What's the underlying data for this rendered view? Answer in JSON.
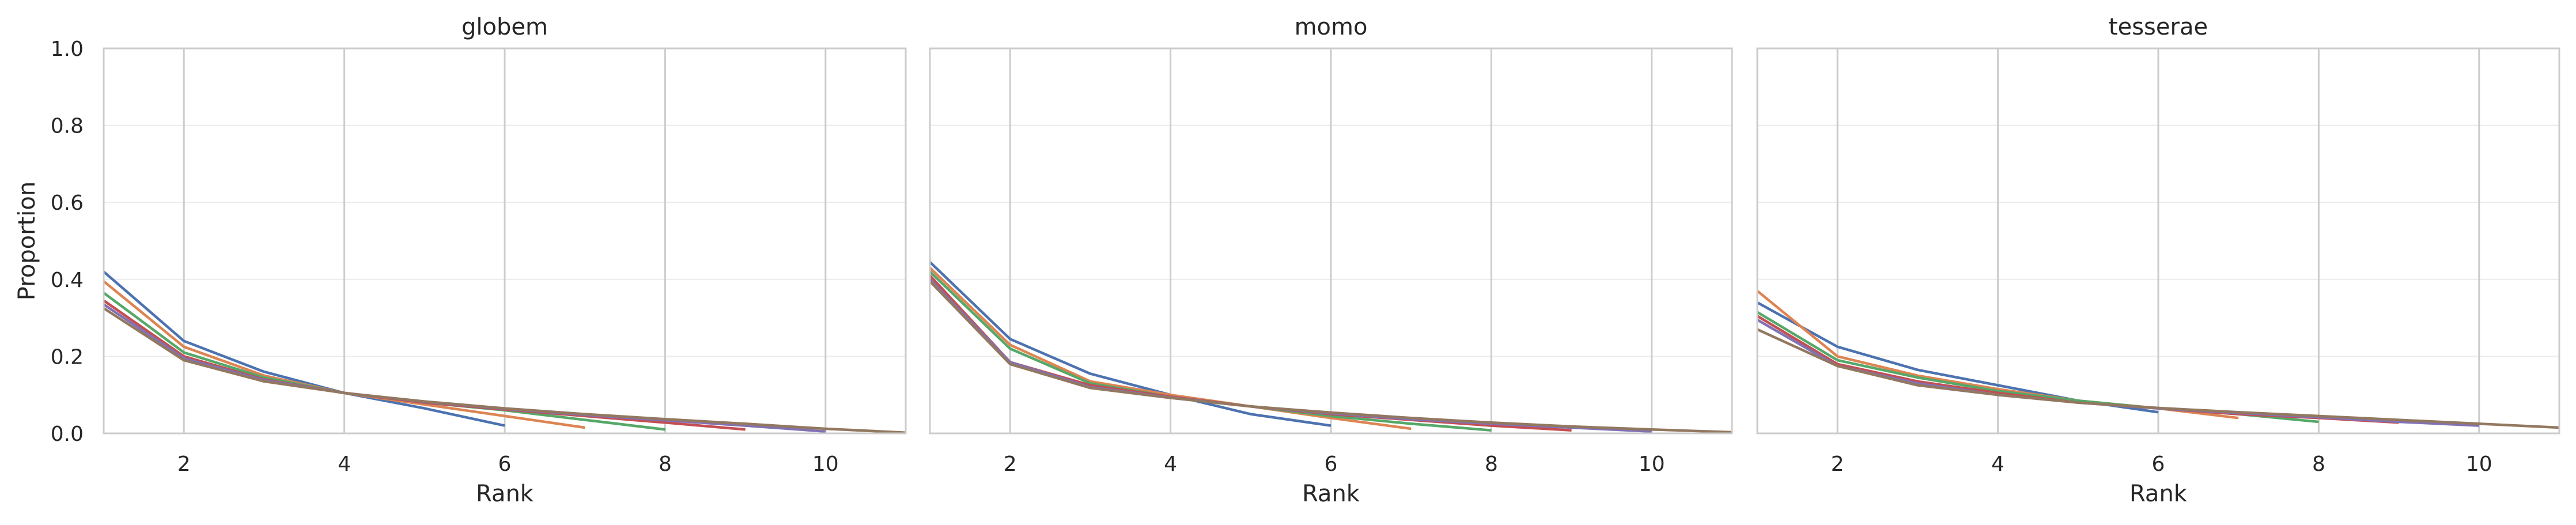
{
  "chart_data": [
    {
      "type": "line",
      "title": "globem",
      "xlabel": "Rank",
      "ylabel": "Proportion",
      "xlim": [
        1,
        11
      ],
      "ylim": [
        0,
        1
      ],
      "xticks": [
        "2",
        "4",
        "6",
        "8",
        "10"
      ],
      "yticks": [
        "0.0",
        "0.2",
        "0.4",
        "0.6",
        "0.8",
        "1.0"
      ],
      "grid": true,
      "series": [
        {
          "color": "#4c72b0",
          "x": [
            1,
            2,
            3,
            4,
            5,
            6
          ],
          "y": [
            0.42,
            0.24,
            0.16,
            0.105,
            0.065,
            0.02
          ]
        },
        {
          "color": "#dd8452",
          "x": [
            1,
            2,
            3,
            4,
            5,
            6,
            7
          ],
          "y": [
            0.395,
            0.225,
            0.15,
            0.105,
            0.075,
            0.045,
            0.015
          ]
        },
        {
          "color": "#55a868",
          "x": [
            1,
            2,
            3,
            4,
            5,
            6,
            7,
            8
          ],
          "y": [
            0.365,
            0.21,
            0.145,
            0.105,
            0.08,
            0.06,
            0.035,
            0.01
          ]
        },
        {
          "color": "#c44e52",
          "x": [
            1,
            2,
            3,
            4,
            5,
            6,
            7,
            8,
            9
          ],
          "y": [
            0.345,
            0.2,
            0.14,
            0.105,
            0.08,
            0.062,
            0.045,
            0.028,
            0.01
          ]
        },
        {
          "color": "#8172b3",
          "x": [
            1,
            2,
            3,
            4,
            5,
            6,
            7,
            8,
            9,
            10
          ],
          "y": [
            0.335,
            0.195,
            0.138,
            0.105,
            0.082,
            0.064,
            0.048,
            0.034,
            0.02,
            0.005
          ]
        },
        {
          "color": "#937860",
          "x": [
            1,
            2,
            3,
            4,
            5,
            6,
            7,
            8,
            9,
            10,
            11
          ],
          "y": [
            0.325,
            0.19,
            0.135,
            0.105,
            0.083,
            0.065,
            0.05,
            0.037,
            0.025,
            0.012,
            0.002
          ]
        }
      ]
    },
    {
      "type": "line",
      "title": "momo",
      "xlabel": "Rank",
      "ylabel": "",
      "xlim": [
        1,
        11
      ],
      "ylim": [
        0,
        1
      ],
      "xticks": [
        "2",
        "4",
        "6",
        "8",
        "10"
      ],
      "yticks": [],
      "grid": true,
      "series": [
        {
          "color": "#4c72b0",
          "x": [
            1,
            2,
            3,
            4,
            5,
            6
          ],
          "y": [
            0.445,
            0.245,
            0.155,
            0.1,
            0.05,
            0.02
          ]
        },
        {
          "color": "#dd8452",
          "x": [
            1,
            2,
            3,
            4,
            5,
            6,
            7
          ],
          "y": [
            0.43,
            0.23,
            0.135,
            0.1,
            0.07,
            0.04,
            0.012
          ]
        },
        {
          "color": "#55a868",
          "x": [
            1,
            2,
            3,
            4,
            5,
            6,
            7,
            8
          ],
          "y": [
            0.42,
            0.22,
            0.13,
            0.095,
            0.07,
            0.045,
            0.025,
            0.008
          ]
        },
        {
          "color": "#c44e52",
          "x": [
            1,
            2,
            3,
            4,
            5,
            6,
            7,
            8,
            9
          ],
          "y": [
            0.41,
            0.185,
            0.125,
            0.095,
            0.07,
            0.05,
            0.035,
            0.02,
            0.008
          ]
        },
        {
          "color": "#8172b3",
          "x": [
            1,
            2,
            3,
            4,
            5,
            6,
            7,
            8,
            9,
            10
          ],
          "y": [
            0.4,
            0.185,
            0.12,
            0.093,
            0.07,
            0.052,
            0.037,
            0.025,
            0.015,
            0.005
          ]
        },
        {
          "color": "#937860",
          "x": [
            1,
            2,
            3,
            4,
            5,
            6,
            7,
            8,
            9,
            10,
            11
          ],
          "y": [
            0.395,
            0.18,
            0.118,
            0.092,
            0.07,
            0.054,
            0.04,
            0.028,
            0.018,
            0.01,
            0.003
          ]
        }
      ]
    },
    {
      "type": "line",
      "title": "tesserae",
      "xlabel": "Rank",
      "ylabel": "",
      "xlim": [
        1,
        11
      ],
      "ylim": [
        0,
        1
      ],
      "xticks": [
        "2",
        "4",
        "6",
        "8",
        "10"
      ],
      "yticks": [],
      "grid": true,
      "series": [
        {
          "color": "#4c72b0",
          "x": [
            1,
            2,
            3,
            4,
            5,
            6
          ],
          "y": [
            0.34,
            0.225,
            0.165,
            0.125,
            0.085,
            0.055
          ]
        },
        {
          "color": "#dd8452",
          "x": [
            1,
            2,
            3,
            4,
            5,
            6,
            7
          ],
          "y": [
            0.37,
            0.2,
            0.15,
            0.115,
            0.085,
            0.065,
            0.04
          ]
        },
        {
          "color": "#55a868",
          "x": [
            1,
            2,
            3,
            4,
            5,
            6,
            7,
            8
          ],
          "y": [
            0.315,
            0.19,
            0.145,
            0.11,
            0.085,
            0.065,
            0.05,
            0.03
          ]
        },
        {
          "color": "#c44e52",
          "x": [
            1,
            2,
            3,
            4,
            5,
            6,
            7,
            8,
            9
          ],
          "y": [
            0.305,
            0.18,
            0.135,
            0.105,
            0.08,
            0.065,
            0.05,
            0.04,
            0.028
          ]
        },
        {
          "color": "#8172b3",
          "x": [
            1,
            2,
            3,
            4,
            5,
            6,
            7,
            8,
            9,
            10
          ],
          "y": [
            0.295,
            0.175,
            0.13,
            0.1,
            0.08,
            0.065,
            0.053,
            0.042,
            0.03,
            0.02
          ]
        },
        {
          "color": "#937860",
          "x": [
            1,
            2,
            3,
            4,
            5,
            6,
            7,
            8,
            9,
            10,
            11
          ],
          "y": [
            0.27,
            0.175,
            0.125,
            0.1,
            0.08,
            0.066,
            0.055,
            0.045,
            0.035,
            0.025,
            0.015
          ]
        }
      ]
    }
  ]
}
